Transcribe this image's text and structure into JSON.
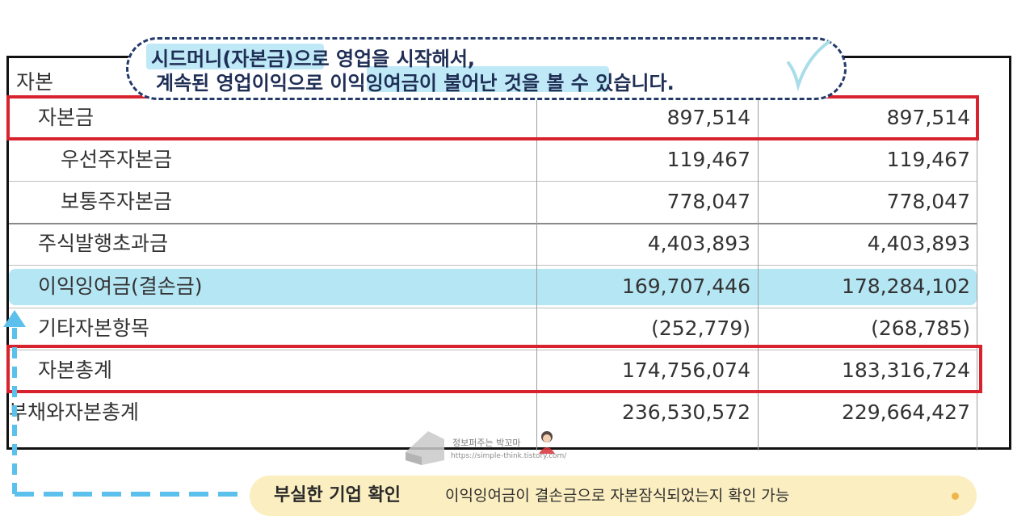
{
  "callout": {
    "line1": "시드머니(자본금)으로 영업을 시작해서,",
    "line2": "계속된 영업이익으로 이익잉여금이 불어난 것을 볼 수 있습니다."
  },
  "table": {
    "section_header": "자본",
    "rows": [
      {
        "label": "자본금",
        "v1": "897,514",
        "v2": "897,514"
      },
      {
        "label": "우선주자본금",
        "v1": "119,467",
        "v2": "119,467"
      },
      {
        "label": "보통주자본금",
        "v1": "778,047",
        "v2": "778,047"
      },
      {
        "label": "주식발행초과금",
        "v1": "4,403,893",
        "v2": "4,403,893"
      },
      {
        "label": "이익잉여금(결손금)",
        "v1": "169,707,446",
        "v2": "178,284,102"
      },
      {
        "label": "기타자본항목",
        "v1": "(252,779)",
        "v2": "(268,785)"
      },
      {
        "label": "자본총계",
        "v1": "174,756,074",
        "v2": "183,316,724"
      },
      {
        "label": "부채와자본총계",
        "v1": "236,530,572",
        "v2": "229,664,427"
      }
    ]
  },
  "watermark": {
    "name": "정보퍼주는 박꼬마",
    "url": "https://simple-think.tistory.com/"
  },
  "footer": {
    "title": "부실한 기업 확인",
    "text": "이익잉여금이 결손금으로 자본잠식되었는지 확인 가능"
  },
  "colors": {
    "accent_red": "#d8232f",
    "highlight_blue": "#b5e6f4",
    "callout_navy": "#233a6a",
    "arrow_blue": "#5bc0eb",
    "footer_bg": "#fbeec0"
  }
}
